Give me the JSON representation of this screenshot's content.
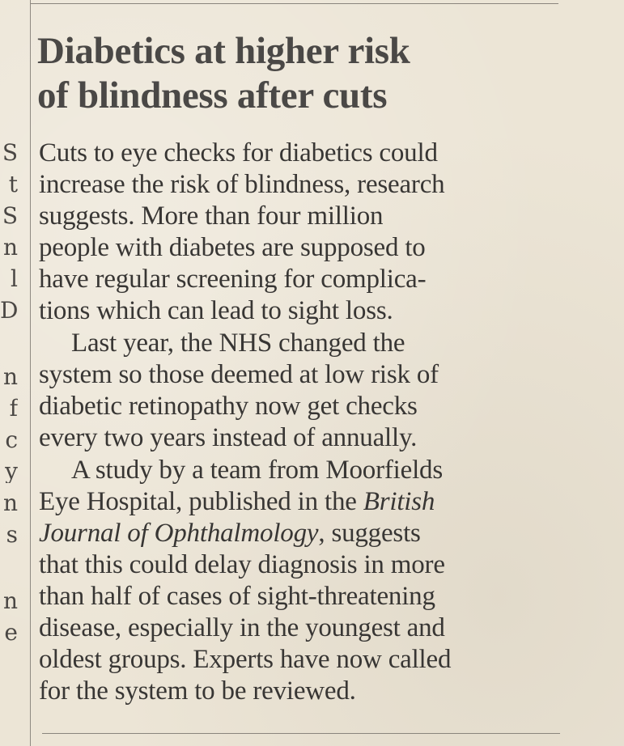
{
  "article": {
    "headline": [
      "Diabetics at higher risk",
      "of blindness after cuts"
    ],
    "paragraphs": [
      {
        "lines": [
          "Cuts to eye checks for diabetics could",
          "increase the risk of blindness, research",
          "suggests. More than four million",
          "people with diabetes are supposed to",
          "have regular screening for complica-",
          "tions which can lead to sight loss."
        ]
      },
      {
        "lines": [
          "Last year, the NHS changed the",
          "system so those deemed at low risk of",
          "diabetic retinopathy now get checks",
          "every two years instead of annually."
        ]
      },
      {
        "lines": [
          "A study by a team from Moorfields",
          "Eye Hospital, published in the ",
          "British",
          "Journal of Ophthalmology",
          ", suggests",
          "that this could delay diagnosis in more",
          "than half of cases of sight-threatening",
          "disease, especially in the youngest and",
          "oldest groups. Experts have now called",
          "for the system to be reviewed."
        ]
      }
    ]
  },
  "adjacent_column_fragments": [
    "S",
    "t",
    "S",
    "n",
    "l",
    "D",
    "n",
    "f",
    "c",
    "y",
    "n",
    "s",
    "n",
    "e"
  ]
}
